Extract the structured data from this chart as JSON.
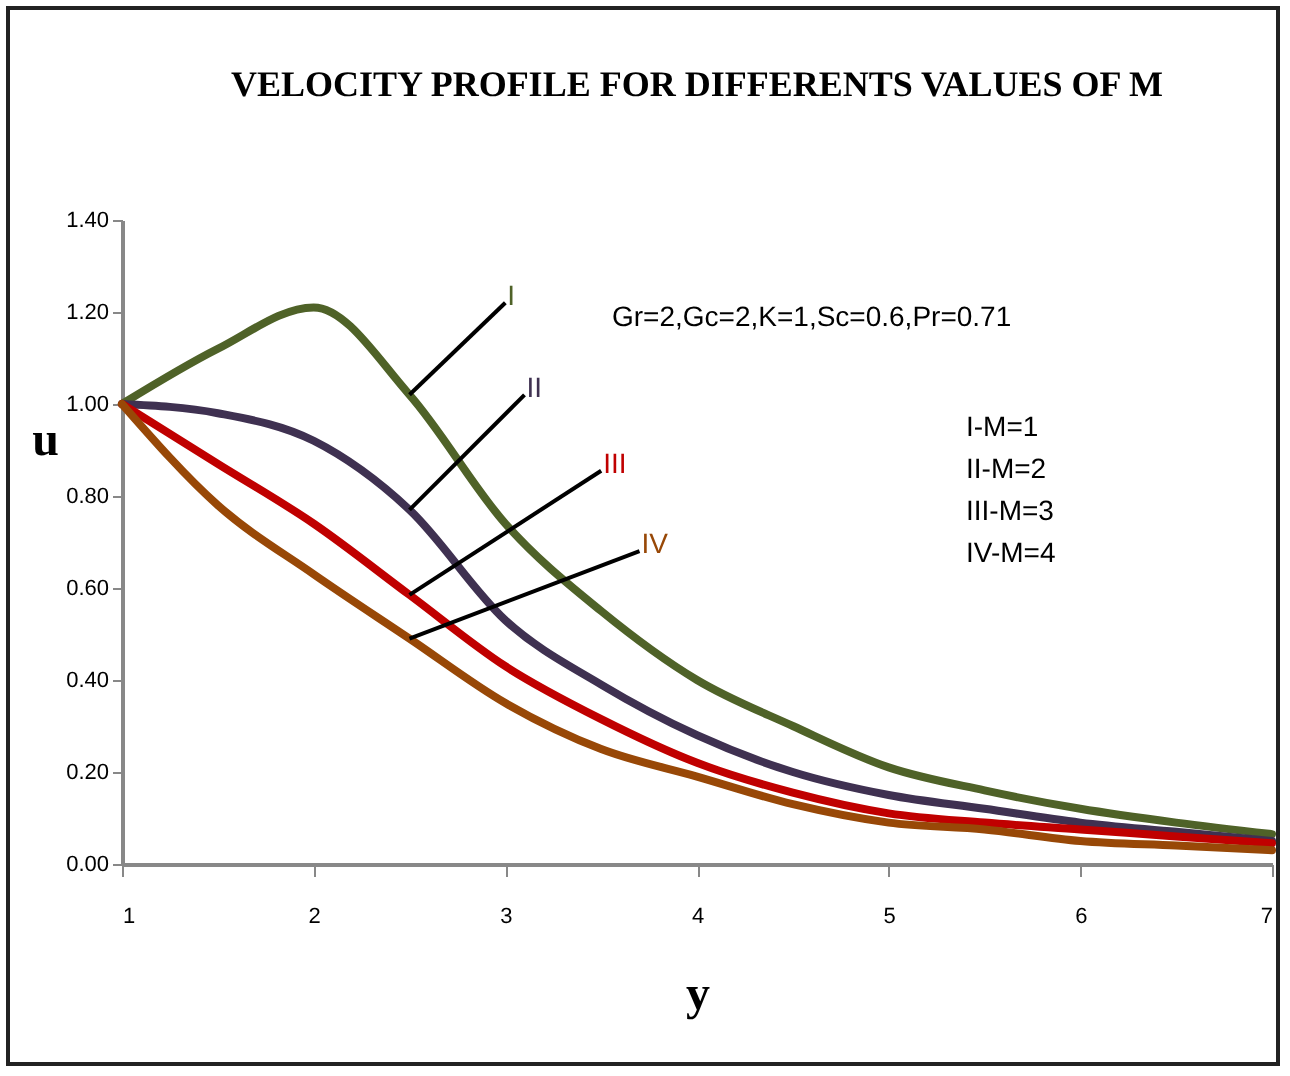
{
  "chart_data": {
    "type": "line",
    "title": "VELOCITY PROFILE FOR DIFFERENTS VALUES OF M",
    "xlabel": "y",
    "ylabel": "u",
    "x": [
      1,
      1.5,
      2,
      2.5,
      3,
      3.5,
      4,
      4.5,
      5,
      5.5,
      6,
      6.5,
      7
    ],
    "series": [
      {
        "name": "I",
        "color": "#4f6228",
        "values": [
          1.0,
          1.12,
          1.21,
          1.02,
          0.74,
          0.55,
          0.4,
          0.3,
          0.21,
          0.16,
          0.12,
          0.09,
          0.065
        ]
      },
      {
        "name": "II",
        "color": "#3f3151",
        "values": [
          1.0,
          0.98,
          0.92,
          0.77,
          0.53,
          0.39,
          0.28,
          0.2,
          0.15,
          0.12,
          0.09,
          0.07,
          0.05
        ]
      },
      {
        "name": "III",
        "color": "#c00000",
        "values": [
          1.0,
          0.87,
          0.74,
          0.585,
          0.43,
          0.315,
          0.22,
          0.155,
          0.11,
          0.09,
          0.075,
          0.06,
          0.045
        ]
      },
      {
        "name": "IV",
        "color": "#984807",
        "values": [
          1.0,
          0.78,
          0.63,
          0.49,
          0.35,
          0.25,
          0.19,
          0.13,
          0.09,
          0.075,
          0.05,
          0.04,
          0.03
        ]
      }
    ],
    "xlim": [
      1,
      7
    ],
    "xticks": [
      1,
      2,
      3,
      4,
      5,
      6,
      7
    ],
    "ylim": [
      0,
      1.4
    ],
    "yticks": [
      {
        "value": 0,
        "label": "0.00"
      },
      {
        "value": 0.2,
        "label": "0.20"
      },
      {
        "value": 0.4,
        "label": "0.40"
      },
      {
        "value": 0.6,
        "label": "0.60"
      },
      {
        "value": 0.8,
        "label": "0.80"
      },
      {
        "value": 1.0,
        "label": "1.00"
      },
      {
        "value": 1.2,
        "label": "1.20"
      },
      {
        "value": 1.4,
        "label": "1.40"
      }
    ],
    "annotations": [
      "Gr=2,Gc=2,K=1,Sc=0.6,Pr=0.71",
      "I-M=1",
      "II-M=2",
      "III-M=3",
      "IV-M=4"
    ],
    "grid": false,
    "legend": false,
    "marker": "none",
    "line_style": "solid"
  }
}
